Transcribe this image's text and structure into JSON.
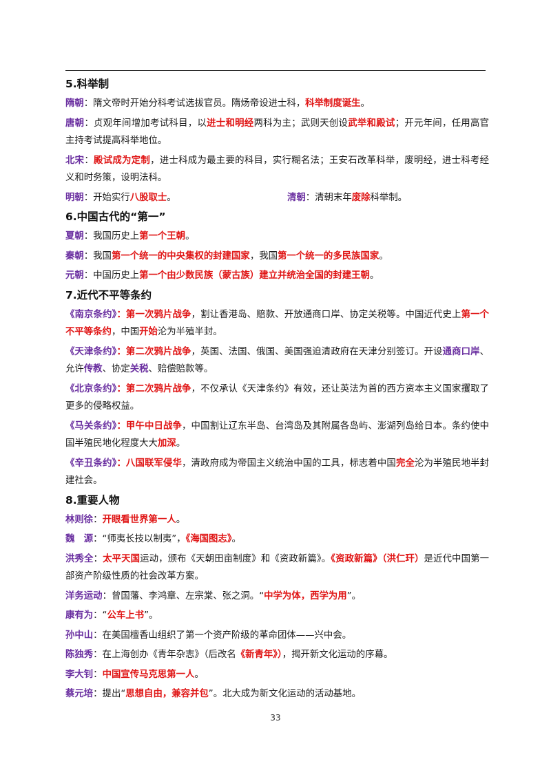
{
  "colors": {
    "label": "#6a2fa0",
    "highlight": "#e01515",
    "text": "#1a1a1a"
  },
  "page_number": "33",
  "sections": [
    {
      "title": "5.科举制",
      "paragraphs": [
        [
          {
            "s": "lab",
            "t": "隋朝"
          },
          {
            "s": "",
            "t": "：隋文帝时开始分科考试选拔官员。隋炀帝设进士科，"
          },
          {
            "s": "red",
            "t": "科举制度诞生"
          },
          {
            "s": "",
            "t": "。"
          }
        ],
        [
          {
            "s": "lab",
            "t": "唐朝"
          },
          {
            "s": "",
            "t": "：贞观年间增加考试科目，以"
          },
          {
            "s": "red",
            "t": "进士和明经"
          },
          {
            "s": "",
            "t": "两科为主；武则天创设"
          },
          {
            "s": "red",
            "t": "武举和殿试"
          },
          {
            "s": "",
            "t": "；开元年间，任用高官主持考试提高科举地位。"
          }
        ],
        [
          {
            "s": "lab",
            "t": "北宋"
          },
          {
            "s": "",
            "t": "："
          },
          {
            "s": "red",
            "t": "殿试成为定制"
          },
          {
            "s": "",
            "t": "，进士科成为最主要的科目，实行糊名法；王安石改革科举，废明经，进士科考经义和时务策，设明法科。"
          }
        ]
      ],
      "two_col": [
        [
          {
            "s": "lab",
            "t": "明朝"
          },
          {
            "s": "",
            "t": "：开始实行"
          },
          {
            "s": "red",
            "t": "八股取士"
          },
          {
            "s": "",
            "t": "。"
          }
        ],
        [
          {
            "s": "lab",
            "t": "清朝"
          },
          {
            "s": "",
            "t": "：清朝末年"
          },
          {
            "s": "red",
            "t": "废除"
          },
          {
            "s": "",
            "t": "科举制。"
          }
        ]
      ]
    },
    {
      "title": "6.中国古代的“第一”",
      "paragraphs": [
        [
          {
            "s": "lab",
            "t": "夏朝"
          },
          {
            "s": "",
            "t": "：我国历史上"
          },
          {
            "s": "red",
            "t": "第一个王朝"
          },
          {
            "s": "",
            "t": "。"
          }
        ],
        [
          {
            "s": "lab",
            "t": "秦朝"
          },
          {
            "s": "",
            "t": "：我国"
          },
          {
            "s": "red",
            "t": "第一个统一的中央集权的封建国家"
          },
          {
            "s": "",
            "t": "，我国"
          },
          {
            "s": "red",
            "t": "第一个统一的多民族国家"
          },
          {
            "s": "",
            "t": "。"
          }
        ],
        [
          {
            "s": "lab",
            "t": "元朝"
          },
          {
            "s": "",
            "t": "：中国历史上"
          },
          {
            "s": "red",
            "t": "第一个由少数民族（蒙古族）建立并统治全国的封建王朝"
          },
          {
            "s": "",
            "t": "。"
          }
        ]
      ]
    },
    {
      "title": "7.近代不平等条约",
      "paragraphs": [
        [
          {
            "s": "pur",
            "t": "《南京条约》"
          },
          {
            "s": "red",
            "t": "：第一次鸦片战争"
          },
          {
            "s": "",
            "t": "，割让香港岛、赔款、开放通商口岸、协定关税等。中国近代史上"
          },
          {
            "s": "red",
            "t": "第一个不平等条约"
          },
          {
            "s": "",
            "t": "，中国"
          },
          {
            "s": "red",
            "t": "开始"
          },
          {
            "s": "",
            "t": "沦为半殖半封。"
          }
        ],
        [
          {
            "s": "pur",
            "t": "《天津条约》"
          },
          {
            "s": "red",
            "t": "：第二次鸦片战争"
          },
          {
            "s": "",
            "t": "，英国、法国、俄国、美国强迫清政府在天津分别签订。开设"
          },
          {
            "s": "pur",
            "t": "通商口岸"
          },
          {
            "s": "",
            "t": "、允许"
          },
          {
            "s": "pur",
            "t": "传教"
          },
          {
            "s": "",
            "t": "、协定"
          },
          {
            "s": "pur",
            "t": "关税"
          },
          {
            "s": "",
            "t": "、赔偿赔款等。"
          }
        ],
        [
          {
            "s": "pur",
            "t": "《北京条约》"
          },
          {
            "s": "red",
            "t": "：第二次鸦片战争"
          },
          {
            "s": "",
            "t": "，不仅承认《天津条约》有效，还让英法为首的西方资本主义国家攫取了更多的侵略权益。"
          }
        ],
        [
          {
            "s": "pur",
            "t": "《马关条约》"
          },
          {
            "s": "red",
            "t": "：甲午中日战争"
          },
          {
            "s": "",
            "t": "，中国割让辽东半岛、台湾岛及其附属各岛屿、澎湖列岛给日本。条约使中国半殖民地化程度大大"
          },
          {
            "s": "red",
            "t": "加深"
          },
          {
            "s": "",
            "t": "。"
          }
        ],
        [
          {
            "s": "pur",
            "t": "《辛丑条约》"
          },
          {
            "s": "red",
            "t": "：八国联军侵华"
          },
          {
            "s": "",
            "t": "，清政府成为帝国主义统治中国的工具，标志着中国"
          },
          {
            "s": "red",
            "t": "完全"
          },
          {
            "s": "",
            "t": "沦为半殖民地半封建社会。"
          }
        ]
      ]
    },
    {
      "title": "8.重要人物",
      "paragraphs": [
        [
          {
            "s": "lab",
            "t": "林则徐"
          },
          {
            "s": "",
            "t": "："
          },
          {
            "s": "red",
            "t": "开眼看世界第一人"
          },
          {
            "s": "",
            "t": "。"
          }
        ],
        [
          {
            "s": "lab",
            "t": "魏　源"
          },
          {
            "s": "",
            "t": "：“师夷长技以制夷”，"
          },
          {
            "s": "red",
            "t": "《海国图志》"
          },
          {
            "s": "",
            "t": "。"
          }
        ],
        [
          {
            "s": "lab",
            "t": "洪秀全"
          },
          {
            "s": "",
            "t": "："
          },
          {
            "s": "red",
            "t": "太平天国"
          },
          {
            "s": "",
            "t": "运动，颁布《天朝田亩制度》和《资政新篇》。"
          },
          {
            "s": "red",
            "t": "《资政新篇》（洪仁玕）"
          },
          {
            "s": "",
            "t": "是近代中国第一部资产阶级性质的社会改革方案。"
          }
        ],
        [
          {
            "s": "lab",
            "t": "洋务运动"
          },
          {
            "s": "",
            "t": "：曾国藩、李鸿章、左宗棠、张之洞。“"
          },
          {
            "s": "red",
            "t": "中学为体，西学为用"
          },
          {
            "s": "",
            "t": "”。"
          }
        ],
        [
          {
            "s": "lab",
            "t": "康有为"
          },
          {
            "s": "",
            "t": "：“"
          },
          {
            "s": "red",
            "t": "公车上书"
          },
          {
            "s": "",
            "t": "”。"
          }
        ],
        [
          {
            "s": "lab",
            "t": "孙中山"
          },
          {
            "s": "",
            "t": "：在美国檀香山组织了第一个资产阶级的革命团体——兴中会。"
          }
        ],
        [
          {
            "s": "lab",
            "t": "陈独秀"
          },
          {
            "s": "",
            "t": "：在上海创办《青年杂志》（后改名"
          },
          {
            "s": "red",
            "t": "《新青年》）"
          },
          {
            "s": "",
            "t": "，揭开新文化运动的序幕。"
          }
        ],
        [
          {
            "s": "lab",
            "t": "李大钊"
          },
          {
            "s": "",
            "t": "："
          },
          {
            "s": "red",
            "t": "中国宣传马克思第一人"
          },
          {
            "s": "",
            "t": "。"
          }
        ],
        [
          {
            "s": "lab",
            "t": "蔡元培"
          },
          {
            "s": "",
            "t": "：提出“"
          },
          {
            "s": "red",
            "t": "思想自由，兼容并包"
          },
          {
            "s": "",
            "t": "”。北大成为新文化运动的活动基地。"
          }
        ]
      ]
    }
  ]
}
